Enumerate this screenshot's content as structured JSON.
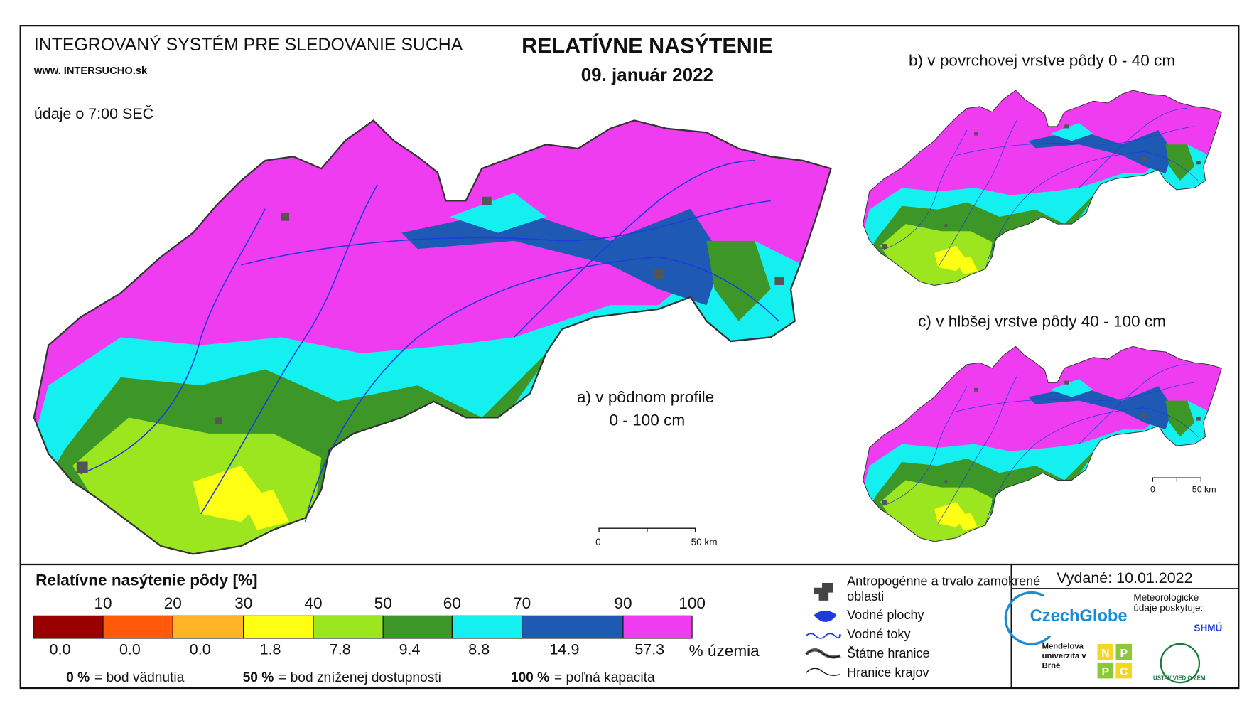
{
  "header": {
    "system_title": "INTEGROVANÝ SYSTÉM PRE SLEDOVANIE SUCHA",
    "website": "www. INTERSUCHO.sk",
    "time_note": "údaje o 7:00 SEČ",
    "main_title": "RELATÍVNE NASÝTENIE",
    "date": "09. január 2022"
  },
  "maps": {
    "a_label": "a) v pôdnom profile",
    "a_depth": "0 - 100 cm",
    "b_label": "b) v povrchovej vrstve pôdy 0 - 40 cm",
    "c_label": "c) v hlbšej vrstve pôdy 40 - 100 cm",
    "scale_zero": "0",
    "scale_end": "50 km"
  },
  "legend": {
    "title": "Relatívne nasýtenie pôdy [%]",
    "ticks": [
      10,
      20,
      30,
      40,
      50,
      60,
      70,
      90,
      100
    ],
    "classes": [
      {
        "color": "#9b0000",
        "share": "0.0"
      },
      {
        "color": "#ff5a0a",
        "share": "0.0"
      },
      {
        "color": "#ffb428",
        "share": "0.0"
      },
      {
        "color": "#ffff14",
        "share": "1.8"
      },
      {
        "color": "#9be61e",
        "share": "7.8"
      },
      {
        "color": "#3c9628",
        "share": "9.4"
      },
      {
        "color": "#14f0f0",
        "share": "8.8"
      },
      {
        "color": "#1e5ab4",
        "share": "14.9"
      },
      {
        "color": "#f03cf0",
        "share": "57.3"
      }
    ],
    "share_unit": "% územia",
    "notes": [
      {
        "term": "0 %",
        "meaning": "= bod vädnutia"
      },
      {
        "term": "50 %",
        "meaning": "= bod zníženej dostupnosti"
      },
      {
        "term": "100 %",
        "meaning": "= poľná kapacita"
      }
    ]
  },
  "symbols": [
    "Antropogénne a trvalo zamokrené oblasti",
    "Vodné plochy",
    "Vodné toky",
    "Štátne hranice",
    "Hranice krajov"
  ],
  "issued": {
    "label": "Vydané: 10.01.2022",
    "czechglobe": "CzechGlobe",
    "meteo_note": "Meteorologické údaje poskytuje:",
    "shmu": "SHMÚ",
    "mendelu": "Mendelova univerzita v Brně",
    "nppc": "NPPC",
    "uvz": "ÚSTAV VIED O ZEMI"
  }
}
